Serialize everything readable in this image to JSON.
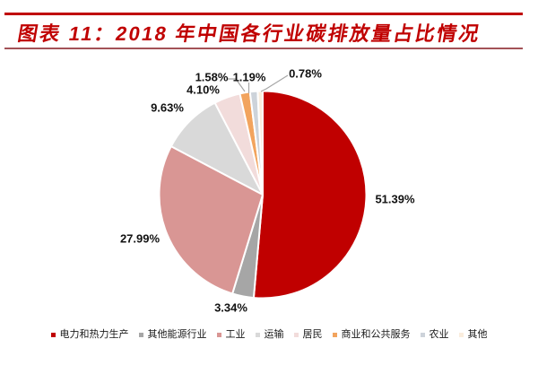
{
  "header": {
    "title": "图表 11：2018 年中国各行业碳排放量占比情况"
  },
  "colors": {
    "title_text": "#C00000",
    "top_rule": "#C00000",
    "sub_rule": "#A35257",
    "label_text": "#111111",
    "leader_line": "#A6A6A6",
    "background": "#FFFFFF"
  },
  "chart_data": {
    "type": "pie",
    "title": "2018 年中国各行业碳排放量占比情况",
    "unit": "%",
    "direction": "clockwise",
    "start_angle_deg": 0,
    "legend_position": "bottom",
    "series": [
      {
        "name": "电力和热力生产",
        "value": 51.39,
        "label": "51.39%",
        "color": "#C00000"
      },
      {
        "name": "其他能源行业",
        "value": 3.34,
        "label": "3.34%",
        "color": "#A6A6A6"
      },
      {
        "name": "工业",
        "value": 27.99,
        "label": "27.99%",
        "color": "#D99694"
      },
      {
        "name": "运输",
        "value": 9.63,
        "label": "9.63%",
        "color": "#D9D9D9"
      },
      {
        "name": "居民",
        "value": 4.1,
        "label": "4.10%",
        "color": "#F2DCDB"
      },
      {
        "name": "商业和公共服务",
        "value": 1.58,
        "label": "1.58%",
        "color": "#F2A45E"
      },
      {
        "name": "农业",
        "value": 1.19,
        "label": "1.19%",
        "color": "#CDD3DA"
      },
      {
        "name": "其他",
        "value": 0.78,
        "label": "0.78%",
        "color": "#FAEDDD"
      }
    ]
  }
}
